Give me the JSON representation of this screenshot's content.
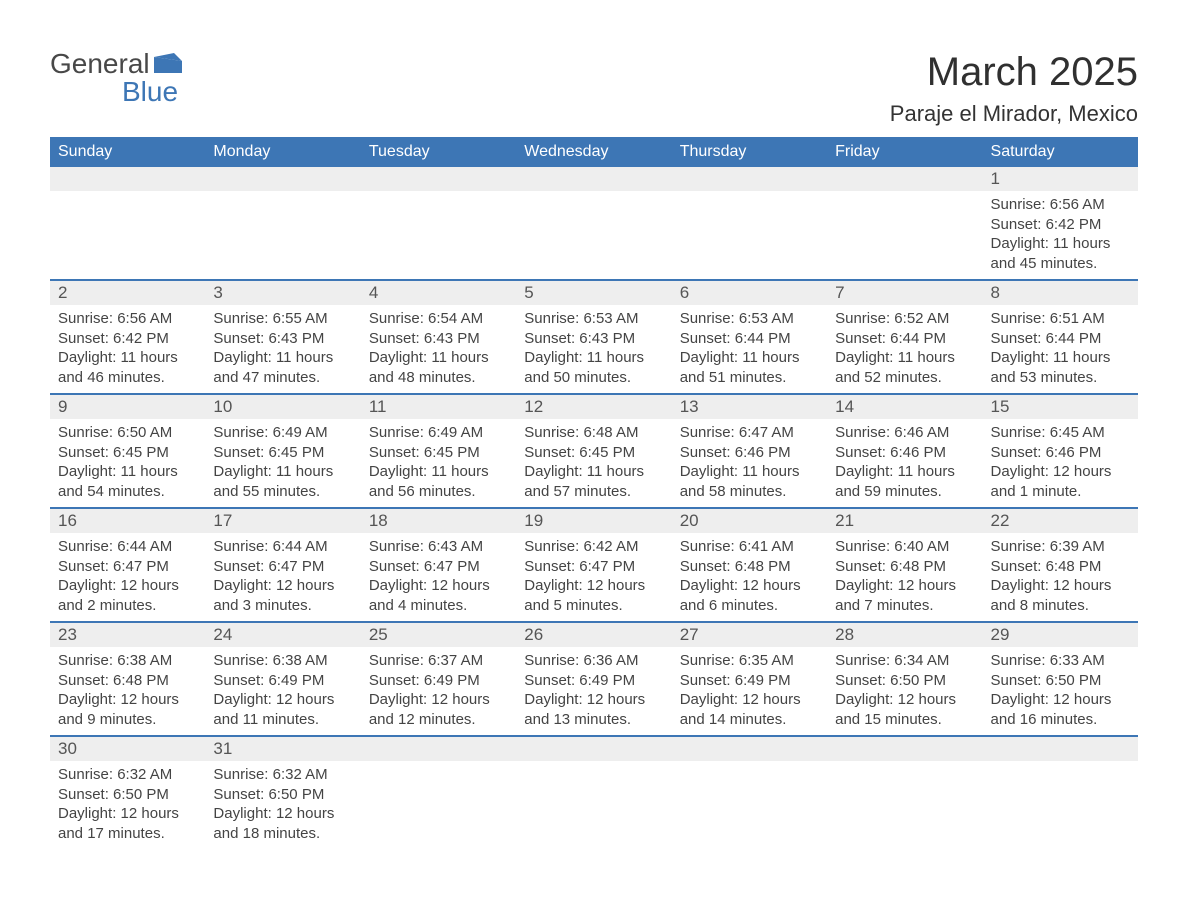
{
  "logo": {
    "text_top": "General",
    "text_bottom": "Blue"
  },
  "header": {
    "title": "March 2025",
    "subtitle": "Paraje el Mirador, Mexico"
  },
  "colors": {
    "header_bg": "#3d76b5",
    "header_text": "#ffffff",
    "daynum_bg": "#eeeeee",
    "row_border": "#3d76b5",
    "body_text": "#444444",
    "page_bg": "#ffffff"
  },
  "calendar": {
    "days_of_week": [
      "Sunday",
      "Monday",
      "Tuesday",
      "Wednesday",
      "Thursday",
      "Friday",
      "Saturday"
    ],
    "weeks": [
      {
        "cells": [
          null,
          null,
          null,
          null,
          null,
          null,
          {
            "day": "1",
            "sunrise": "Sunrise: 6:56 AM",
            "sunset": "Sunset: 6:42 PM",
            "daylight": "Daylight: 11 hours and 45 minutes."
          }
        ]
      },
      {
        "cells": [
          {
            "day": "2",
            "sunrise": "Sunrise: 6:56 AM",
            "sunset": "Sunset: 6:42 PM",
            "daylight": "Daylight: 11 hours and 46 minutes."
          },
          {
            "day": "3",
            "sunrise": "Sunrise: 6:55 AM",
            "sunset": "Sunset: 6:43 PM",
            "daylight": "Daylight: 11 hours and 47 minutes."
          },
          {
            "day": "4",
            "sunrise": "Sunrise: 6:54 AM",
            "sunset": "Sunset: 6:43 PM",
            "daylight": "Daylight: 11 hours and 48 minutes."
          },
          {
            "day": "5",
            "sunrise": "Sunrise: 6:53 AM",
            "sunset": "Sunset: 6:43 PM",
            "daylight": "Daylight: 11 hours and 50 minutes."
          },
          {
            "day": "6",
            "sunrise": "Sunrise: 6:53 AM",
            "sunset": "Sunset: 6:44 PM",
            "daylight": "Daylight: 11 hours and 51 minutes."
          },
          {
            "day": "7",
            "sunrise": "Sunrise: 6:52 AM",
            "sunset": "Sunset: 6:44 PM",
            "daylight": "Daylight: 11 hours and 52 minutes."
          },
          {
            "day": "8",
            "sunrise": "Sunrise: 6:51 AM",
            "sunset": "Sunset: 6:44 PM",
            "daylight": "Daylight: 11 hours and 53 minutes."
          }
        ]
      },
      {
        "cells": [
          {
            "day": "9",
            "sunrise": "Sunrise: 6:50 AM",
            "sunset": "Sunset: 6:45 PM",
            "daylight": "Daylight: 11 hours and 54 minutes."
          },
          {
            "day": "10",
            "sunrise": "Sunrise: 6:49 AM",
            "sunset": "Sunset: 6:45 PM",
            "daylight": "Daylight: 11 hours and 55 minutes."
          },
          {
            "day": "11",
            "sunrise": "Sunrise: 6:49 AM",
            "sunset": "Sunset: 6:45 PM",
            "daylight": "Daylight: 11 hours and 56 minutes."
          },
          {
            "day": "12",
            "sunrise": "Sunrise: 6:48 AM",
            "sunset": "Sunset: 6:45 PM",
            "daylight": "Daylight: 11 hours and 57 minutes."
          },
          {
            "day": "13",
            "sunrise": "Sunrise: 6:47 AM",
            "sunset": "Sunset: 6:46 PM",
            "daylight": "Daylight: 11 hours and 58 minutes."
          },
          {
            "day": "14",
            "sunrise": "Sunrise: 6:46 AM",
            "sunset": "Sunset: 6:46 PM",
            "daylight": "Daylight: 11 hours and 59 minutes."
          },
          {
            "day": "15",
            "sunrise": "Sunrise: 6:45 AM",
            "sunset": "Sunset: 6:46 PM",
            "daylight": "Daylight: 12 hours and 1 minute."
          }
        ]
      },
      {
        "cells": [
          {
            "day": "16",
            "sunrise": "Sunrise: 6:44 AM",
            "sunset": "Sunset: 6:47 PM",
            "daylight": "Daylight: 12 hours and 2 minutes."
          },
          {
            "day": "17",
            "sunrise": "Sunrise: 6:44 AM",
            "sunset": "Sunset: 6:47 PM",
            "daylight": "Daylight: 12 hours and 3 minutes."
          },
          {
            "day": "18",
            "sunrise": "Sunrise: 6:43 AM",
            "sunset": "Sunset: 6:47 PM",
            "daylight": "Daylight: 12 hours and 4 minutes."
          },
          {
            "day": "19",
            "sunrise": "Sunrise: 6:42 AM",
            "sunset": "Sunset: 6:47 PM",
            "daylight": "Daylight: 12 hours and 5 minutes."
          },
          {
            "day": "20",
            "sunrise": "Sunrise: 6:41 AM",
            "sunset": "Sunset: 6:48 PM",
            "daylight": "Daylight: 12 hours and 6 minutes."
          },
          {
            "day": "21",
            "sunrise": "Sunrise: 6:40 AM",
            "sunset": "Sunset: 6:48 PM",
            "daylight": "Daylight: 12 hours and 7 minutes."
          },
          {
            "day": "22",
            "sunrise": "Sunrise: 6:39 AM",
            "sunset": "Sunset: 6:48 PM",
            "daylight": "Daylight: 12 hours and 8 minutes."
          }
        ]
      },
      {
        "cells": [
          {
            "day": "23",
            "sunrise": "Sunrise: 6:38 AM",
            "sunset": "Sunset: 6:48 PM",
            "daylight": "Daylight: 12 hours and 9 minutes."
          },
          {
            "day": "24",
            "sunrise": "Sunrise: 6:38 AM",
            "sunset": "Sunset: 6:49 PM",
            "daylight": "Daylight: 12 hours and 11 minutes."
          },
          {
            "day": "25",
            "sunrise": "Sunrise: 6:37 AM",
            "sunset": "Sunset: 6:49 PM",
            "daylight": "Daylight: 12 hours and 12 minutes."
          },
          {
            "day": "26",
            "sunrise": "Sunrise: 6:36 AM",
            "sunset": "Sunset: 6:49 PM",
            "daylight": "Daylight: 12 hours and 13 minutes."
          },
          {
            "day": "27",
            "sunrise": "Sunrise: 6:35 AM",
            "sunset": "Sunset: 6:49 PM",
            "daylight": "Daylight: 12 hours and 14 minutes."
          },
          {
            "day": "28",
            "sunrise": "Sunrise: 6:34 AM",
            "sunset": "Sunset: 6:50 PM",
            "daylight": "Daylight: 12 hours and 15 minutes."
          },
          {
            "day": "29",
            "sunrise": "Sunrise: 6:33 AM",
            "sunset": "Sunset: 6:50 PM",
            "daylight": "Daylight: 12 hours and 16 minutes."
          }
        ]
      },
      {
        "cells": [
          {
            "day": "30",
            "sunrise": "Sunrise: 6:32 AM",
            "sunset": "Sunset: 6:50 PM",
            "daylight": "Daylight: 12 hours and 17 minutes."
          },
          {
            "day": "31",
            "sunrise": "Sunrise: 6:32 AM",
            "sunset": "Sunset: 6:50 PM",
            "daylight": "Daylight: 12 hours and 18 minutes."
          },
          null,
          null,
          null,
          null,
          null
        ]
      }
    ]
  }
}
